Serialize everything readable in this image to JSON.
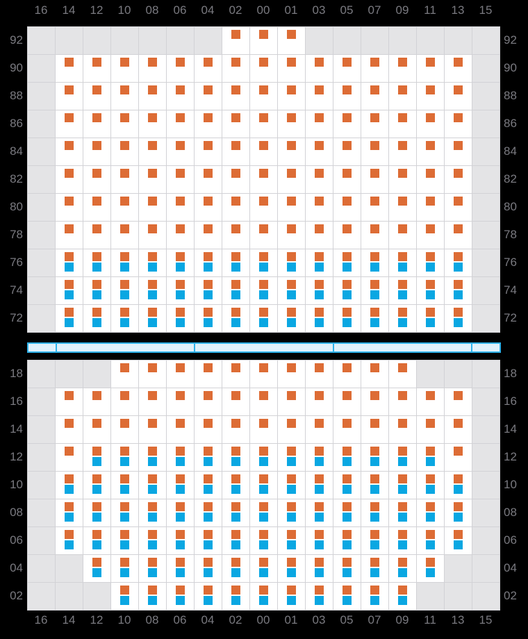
{
  "colors": {
    "background": "#000000",
    "orange_marker": "#dd6c35",
    "blue_marker": "#0aa7e2",
    "disabled_cell": "#e4e4e6",
    "grid_line": "#d2d2d6",
    "cell_white": "#ffffff",
    "label_grey": "#7a7a80",
    "bar_border": "#2fb2ea",
    "bar_fill": "#e1f1fb"
  },
  "axis": {
    "columns": [
      "16",
      "14",
      "12",
      "10",
      "08",
      "06",
      "04",
      "02",
      "00",
      "01",
      "03",
      "05",
      "07",
      "09",
      "11",
      "13",
      "15"
    ]
  },
  "state_key": {
    "e": "empty-disabled",
    "o": "orange-marker-only",
    "b": "orange-and-blue-markers"
  },
  "upper_section": {
    "row_labels": [
      "92",
      "90",
      "88",
      "86",
      "84",
      "82",
      "80",
      "78",
      "76",
      "74",
      "72"
    ],
    "rows": [
      [
        "e",
        "e",
        "e",
        "e",
        "e",
        "e",
        "e",
        "o",
        "o",
        "o",
        "e",
        "e",
        "e",
        "e",
        "e",
        "e",
        "e"
      ],
      [
        "e",
        "o",
        "o",
        "o",
        "o",
        "o",
        "o",
        "o",
        "o",
        "o",
        "o",
        "o",
        "o",
        "o",
        "o",
        "o",
        "e"
      ],
      [
        "e",
        "o",
        "o",
        "o",
        "o",
        "o",
        "o",
        "o",
        "o",
        "o",
        "o",
        "o",
        "o",
        "o",
        "o",
        "o",
        "e"
      ],
      [
        "e",
        "o",
        "o",
        "o",
        "o",
        "o",
        "o",
        "o",
        "o",
        "o",
        "o",
        "o",
        "o",
        "o",
        "o",
        "o",
        "e"
      ],
      [
        "e",
        "o",
        "o",
        "o",
        "o",
        "o",
        "o",
        "o",
        "o",
        "o",
        "o",
        "o",
        "o",
        "o",
        "o",
        "o",
        "e"
      ],
      [
        "e",
        "o",
        "o",
        "o",
        "o",
        "o",
        "o",
        "o",
        "o",
        "o",
        "o",
        "o",
        "o",
        "o",
        "o",
        "o",
        "e"
      ],
      [
        "e",
        "o",
        "o",
        "o",
        "o",
        "o",
        "o",
        "o",
        "o",
        "o",
        "o",
        "o",
        "o",
        "o",
        "o",
        "o",
        "e"
      ],
      [
        "e",
        "o",
        "o",
        "o",
        "o",
        "o",
        "o",
        "o",
        "o",
        "o",
        "o",
        "o",
        "o",
        "o",
        "o",
        "o",
        "e"
      ],
      [
        "e",
        "b",
        "b",
        "b",
        "b",
        "b",
        "b",
        "b",
        "b",
        "b",
        "b",
        "b",
        "b",
        "b",
        "b",
        "b",
        "e"
      ],
      [
        "e",
        "b",
        "b",
        "b",
        "b",
        "b",
        "b",
        "b",
        "b",
        "b",
        "b",
        "b",
        "b",
        "b",
        "b",
        "b",
        "e"
      ],
      [
        "e",
        "b",
        "b",
        "b",
        "b",
        "b",
        "b",
        "b",
        "b",
        "b",
        "b",
        "b",
        "b",
        "b",
        "b",
        "b",
        "e"
      ]
    ]
  },
  "aisle_bar": {
    "segments_cols": [
      1,
      5,
      5,
      5,
      1
    ]
  },
  "lower_section": {
    "row_labels": [
      "18",
      "16",
      "14",
      "12",
      "10",
      "08",
      "06",
      "04",
      "02"
    ],
    "rows": [
      [
        "e",
        "e",
        "e",
        "o",
        "o",
        "o",
        "o",
        "o",
        "o",
        "o",
        "o",
        "o",
        "o",
        "o",
        "e",
        "e",
        "e"
      ],
      [
        "e",
        "o",
        "o",
        "o",
        "o",
        "o",
        "o",
        "o",
        "o",
        "o",
        "o",
        "o",
        "o",
        "o",
        "o",
        "o",
        "e"
      ],
      [
        "e",
        "o",
        "o",
        "o",
        "o",
        "o",
        "o",
        "o",
        "o",
        "o",
        "o",
        "o",
        "o",
        "o",
        "o",
        "o",
        "e"
      ],
      [
        "e",
        "o",
        "b",
        "b",
        "b",
        "b",
        "b",
        "b",
        "b",
        "b",
        "b",
        "b",
        "b",
        "b",
        "b",
        "o",
        "e"
      ],
      [
        "e",
        "b",
        "b",
        "b",
        "b",
        "b",
        "b",
        "b",
        "b",
        "b",
        "b",
        "b",
        "b",
        "b",
        "b",
        "b",
        "e"
      ],
      [
        "e",
        "b",
        "b",
        "b",
        "b",
        "b",
        "b",
        "b",
        "b",
        "b",
        "b",
        "b",
        "b",
        "b",
        "b",
        "b",
        "e"
      ],
      [
        "e",
        "b",
        "b",
        "b",
        "b",
        "b",
        "b",
        "b",
        "b",
        "b",
        "b",
        "b",
        "b",
        "b",
        "b",
        "b",
        "e"
      ],
      [
        "e",
        "e",
        "b",
        "b",
        "b",
        "b",
        "b",
        "b",
        "b",
        "b",
        "b",
        "b",
        "b",
        "b",
        "b",
        "e",
        "e"
      ],
      [
        "e",
        "e",
        "e",
        "b",
        "b",
        "b",
        "b",
        "b",
        "b",
        "b",
        "b",
        "b",
        "b",
        "b",
        "e",
        "e",
        "e"
      ]
    ]
  }
}
